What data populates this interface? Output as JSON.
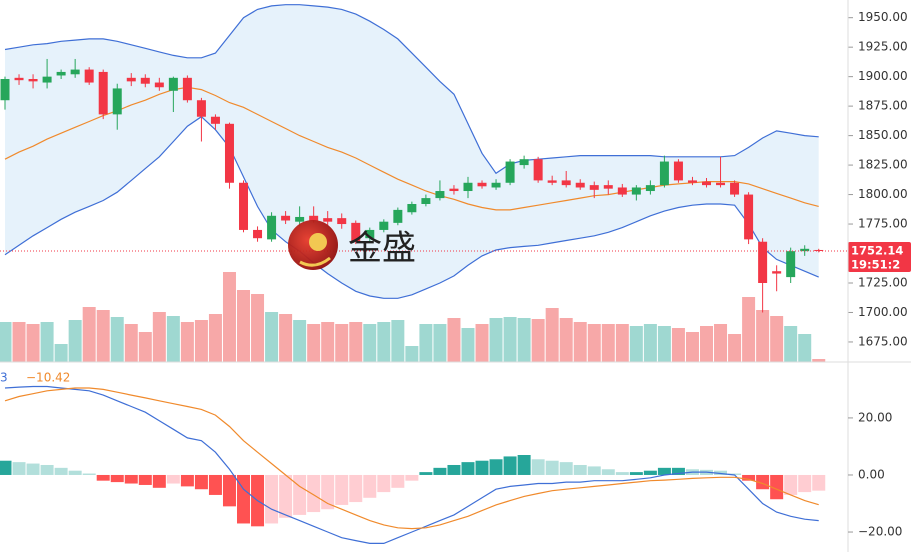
{
  "chart_data": [
    {
      "type": "candlestick",
      "ylim": [
        1658,
        1965
      ],
      "yticks": [
        {
          "value": 1950,
          "label": "1950.00"
        },
        {
          "value": 1925,
          "label": "1925.00"
        },
        {
          "value": 1900,
          "label": "1900.00"
        },
        {
          "value": 1875,
          "label": "1875.00"
        },
        {
          "value": 1850,
          "label": "1850.00"
        },
        {
          "value": 1825,
          "label": "1825.00"
        },
        {
          "value": 1800,
          "label": "1800.00"
        },
        {
          "value": 1775,
          "label": "1775.00"
        },
        {
          "value": 1750,
          "label": "1750.00"
        },
        {
          "value": 1725,
          "label": "1725.00"
        },
        {
          "value": 1700,
          "label": "1700.00"
        },
        {
          "value": 1675,
          "label": "1675.00"
        }
      ],
      "open": [
        1880,
        1899,
        1898,
        1895,
        1901,
        1902,
        1906,
        1904,
        1868,
        1899,
        1899,
        1895,
        1888,
        1899,
        1880,
        1866,
        1860,
        1810,
        1770,
        1762,
        1782,
        1777,
        1782,
        1780,
        1780,
        1776,
        1763,
        1770,
        1776,
        1785,
        1792,
        1797,
        1805,
        1803,
        1810,
        1806,
        1810,
        1825,
        1830,
        1812,
        1812,
        1810,
        1808,
        1808,
        1806,
        1800,
        1803,
        1808,
        1828,
        1812,
        1811,
        1810,
        1810,
        1800,
        1760,
        1735,
        1730,
        1752,
        1753
      ],
      "high": [
        1900,
        1902,
        1902,
        1915,
        1906,
        1915,
        1908,
        1906,
        1894,
        1903,
        1902,
        1899,
        1900,
        1901,
        1882,
        1868,
        1861,
        1812,
        1773,
        1785,
        1786,
        1790,
        1790,
        1786,
        1784,
        1778,
        1772,
        1779,
        1789,
        1794,
        1800,
        1812,
        1808,
        1815,
        1812,
        1813,
        1830,
        1833,
        1832,
        1816,
        1820,
        1813,
        1811,
        1812,
        1809,
        1808,
        1812,
        1833,
        1830,
        1815,
        1814,
        1832,
        1812,
        1802,
        1763,
        1740,
        1755,
        1757,
        1754
      ],
      "low": [
        1872,
        1893,
        1890,
        1890,
        1898,
        1899,
        1893,
        1864,
        1855,
        1892,
        1891,
        1888,
        1870,
        1878,
        1845,
        1855,
        1805,
        1768,
        1760,
        1760,
        1775,
        1773,
        1776,
        1774,
        1771,
        1758,
        1760,
        1768,
        1774,
        1783,
        1790,
        1795,
        1800,
        1797,
        1805,
        1804,
        1808,
        1822,
        1810,
        1808,
        1806,
        1804,
        1797,
        1800,
        1798,
        1795,
        1800,
        1806,
        1810,
        1808,
        1806,
        1806,
        1798,
        1758,
        1700,
        1718,
        1725,
        1748,
        1751
      ],
      "close": [
        1898,
        1897,
        1896,
        1900,
        1904,
        1906,
        1895,
        1868,
        1890,
        1896,
        1894,
        1891,
        1899,
        1880,
        1866,
        1860,
        1810,
        1770,
        1763,
        1782,
        1778,
        1781,
        1778,
        1777,
        1775,
        1760,
        1770,
        1777,
        1787,
        1792,
        1797,
        1803,
        1803,
        1810,
        1807,
        1810,
        1828,
        1830,
        1812,
        1810,
        1808,
        1806,
        1804,
        1805,
        1800,
        1806,
        1808,
        1828,
        1812,
        1810,
        1808,
        1808,
        1800,
        1762,
        1725,
        1733,
        1752,
        1754,
        1752.14
      ],
      "volume": [
        40,
        40,
        38,
        40,
        18,
        42,
        55,
        52,
        45,
        38,
        30,
        50,
        46,
        40,
        42,
        48,
        90,
        72,
        68,
        50,
        48,
        42,
        38,
        40,
        38,
        40,
        38,
        40,
        42,
        16,
        38,
        38,
        44,
        34,
        38,
        44,
        45,
        44,
        43,
        54,
        44,
        40,
        38,
        38,
        38,
        36,
        38,
        36,
        34,
        30,
        36,
        38,
        28,
        65,
        52,
        46,
        36,
        28,
        3
      ],
      "volume_lim": [
        0,
        362
      ],
      "bands": [
        {
          "color": "#3f6fd6",
          "values": [
            1923,
            1925,
            1927,
            1928,
            1930,
            1931,
            1932,
            1932,
            1930,
            1927,
            1924,
            1921,
            1918,
            1916,
            1916,
            1920,
            1935,
            1950,
            1957,
            1960,
            1961,
            1961,
            1960,
            1959,
            1957,
            1953,
            1947,
            1940,
            1932,
            1920,
            1908,
            1896,
            1885,
            1860,
            1835,
            1818,
            1826,
            1829,
            1830,
            1831,
            1832,
            1833,
            1833,
            1833,
            1833,
            1833,
            1833,
            1832,
            1832,
            1832,
            1832,
            1832,
            1833,
            1840,
            1848,
            1854,
            1852,
            1850,
            1849
          ]
        },
        {
          "color": "#f08a2c",
          "values": [
            1830,
            1836,
            1841,
            1847,
            1852,
            1857,
            1862,
            1867,
            1871,
            1876,
            1880,
            1885,
            1889,
            1891,
            1889,
            1884,
            1878,
            1874,
            1868,
            1862,
            1856,
            1850,
            1845,
            1840,
            1836,
            1831,
            1825,
            1819,
            1813,
            1808,
            1803,
            1799,
            1796,
            1792,
            1789,
            1787,
            1787,
            1789,
            1791,
            1793,
            1795,
            1797,
            1799,
            1800,
            1802,
            1804,
            1806,
            1808,
            1809,
            1810,
            1811,
            1811,
            1811,
            1809,
            1805,
            1801,
            1797,
            1793,
            1790
          ]
        },
        {
          "color": "#3f6fd6",
          "values": [
            1749,
            1757,
            1765,
            1772,
            1779,
            1785,
            1790,
            1795,
            1802,
            1812,
            1822,
            1832,
            1845,
            1858,
            1866,
            1855,
            1840,
            1815,
            1790,
            1770,
            1760,
            1752,
            1742,
            1733,
            1725,
            1718,
            1714,
            1712,
            1712,
            1715,
            1720,
            1725,
            1731,
            1740,
            1748,
            1753,
            1755,
            1756,
            1757,
            1759,
            1761,
            1763,
            1765,
            1768,
            1772,
            1777,
            1782,
            1786,
            1789,
            1791,
            1792,
            1792,
            1791,
            1775,
            1755,
            1745,
            1740,
            1735,
            1730
          ]
        }
      ],
      "band_fill": "#e6f2fb",
      "up_color": "#26a65b",
      "down_color": "#f23645",
      "up_volume_color": "#9fd8d1",
      "down_volume_color": "#f7a8a8",
      "last_price": {
        "value": 1752.14,
        "label": "1752.14"
      },
      "time_label": "19:51:2",
      "watermark": "金盛"
    },
    {
      "type": "macd",
      "ylim": [
        -27,
        39.6
      ],
      "yticks": [
        {
          "value": 20,
          "label": "20.00"
        },
        {
          "value": 0,
          "label": "0.00"
        },
        {
          "value": -20,
          "label": "−20.00"
        }
      ],
      "header_values": [
        "3",
        "−10.42"
      ],
      "histogram": [
        5,
        4.5,
        4,
        3.5,
        2.5,
        1.5,
        0.5,
        -2,
        -2.5,
        -3,
        -3.5,
        -4.5,
        -3,
        -4,
        -5,
        -7,
        -11,
        -17,
        -18,
        -17,
        -15,
        -14,
        -13,
        -12,
        -10.5,
        -9.5,
        -8,
        -6,
        -4.5,
        -2,
        1,
        2.5,
        3.5,
        4.5,
        5,
        5.5,
        6.5,
        7,
        5.5,
        5,
        4.5,
        3.5,
        3,
        2,
        1,
        1,
        1.5,
        2.5,
        2.5,
        2,
        1.8,
        1.5,
        0.5,
        -2,
        -5,
        -8.5,
        -7,
        -6,
        -5.5
      ],
      "histogram_colors": {
        "up_strong": "#26a69a",
        "up_weak": "#b2dfdb",
        "down_strong": "#ff5252",
        "down_weak": "#ffcdd2"
      },
      "lines": [
        {
          "color": "#3f6fd6",
          "values": [
            30.5,
            30.8,
            31,
            31,
            30.5,
            30,
            29.5,
            28,
            26,
            24,
            22,
            19,
            16,
            13,
            12,
            8,
            2,
            -5,
            -9,
            -12,
            -14,
            -16,
            -18,
            -20,
            -22,
            -23,
            -24,
            -24,
            -22,
            -20,
            -18,
            -16,
            -14,
            -11,
            -8,
            -5,
            -4,
            -3.5,
            -3,
            -3,
            -2.5,
            -2.5,
            -2,
            -2,
            -2,
            -1.5,
            -1,
            0,
            0.5,
            1,
            1,
            0.5,
            0,
            -5,
            -10,
            -13,
            -14.5,
            -15.5,
            -16
          ]
        },
        {
          "color": "#f08a2c",
          "values": [
            26,
            27.5,
            28.5,
            29.5,
            30,
            30.5,
            30.5,
            30,
            29,
            28,
            27,
            26,
            25,
            24,
            23,
            21,
            17,
            12,
            8,
            4,
            0,
            -4,
            -7,
            -10,
            -12,
            -14,
            -16,
            -17.5,
            -18.5,
            -18.8,
            -18.5,
            -17.5,
            -16,
            -14.5,
            -12.5,
            -10.5,
            -9,
            -7.5,
            -6.5,
            -5.5,
            -5,
            -4.5,
            -4,
            -3.5,
            -3,
            -2.5,
            -2,
            -1.8,
            -1.5,
            -1.2,
            -1,
            -0.8,
            -0.8,
            -1.5,
            -3,
            -5,
            -7,
            -9,
            -10.42
          ]
        }
      ]
    }
  ]
}
